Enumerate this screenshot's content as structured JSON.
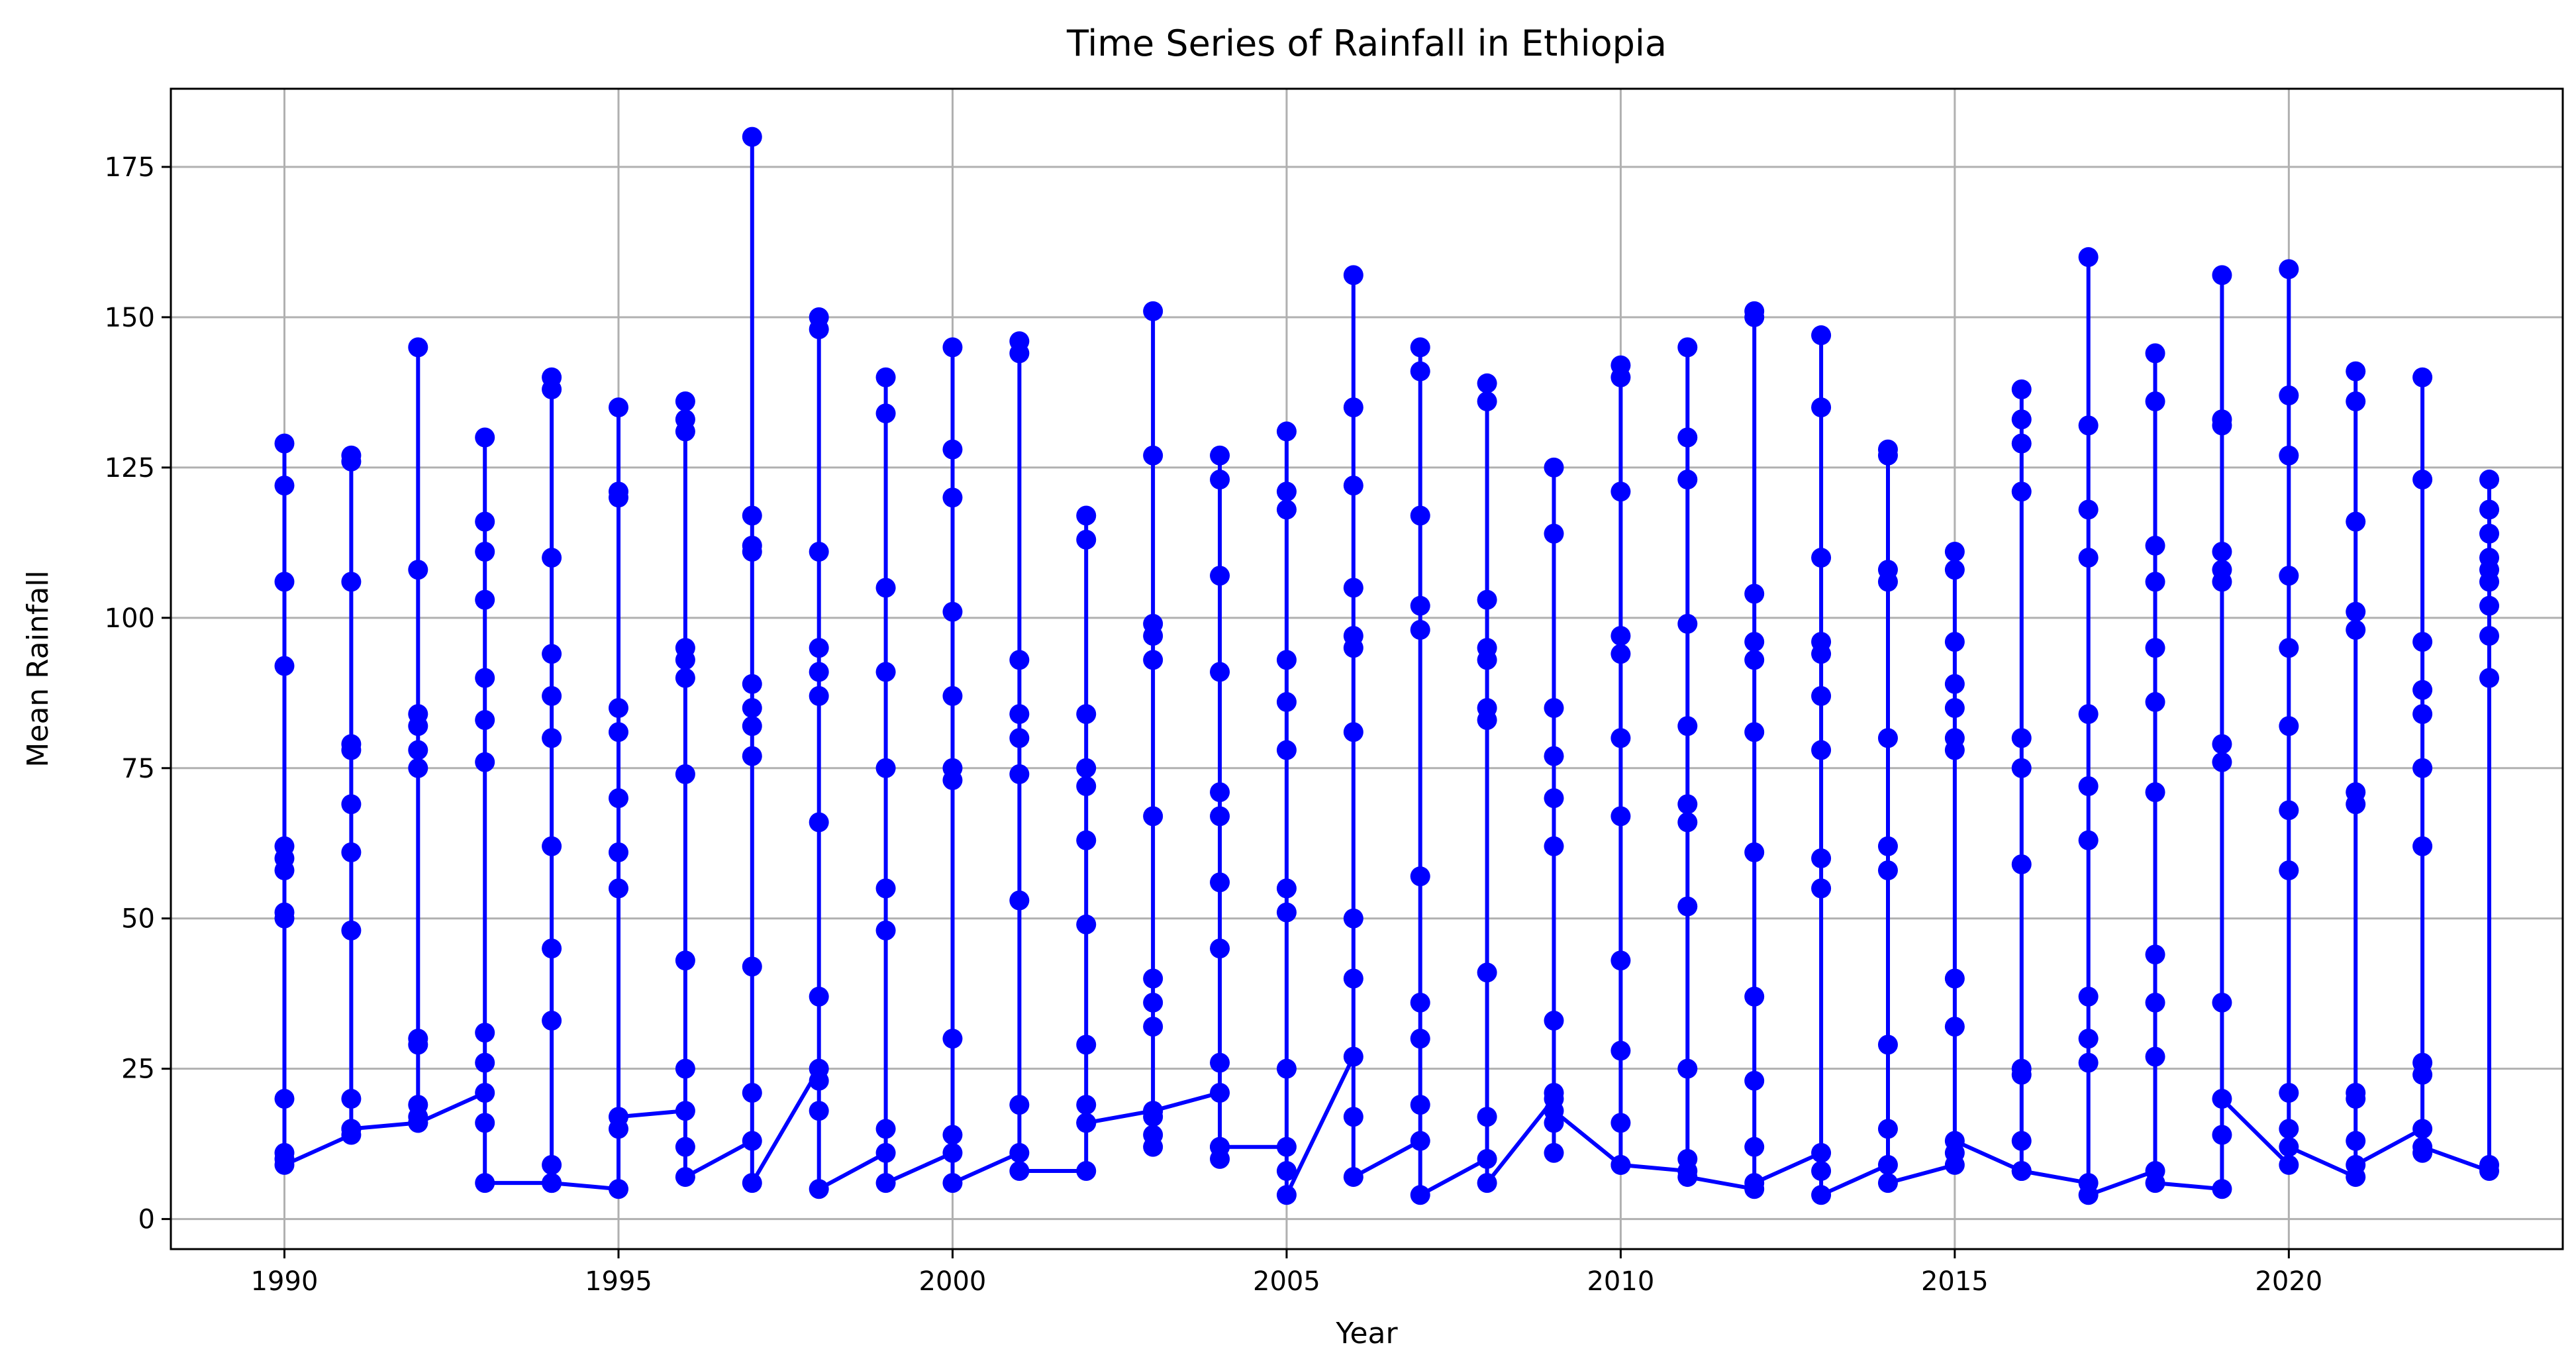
{
  "chart_data": {
    "type": "line",
    "title": "Time Series of Rainfall in Ethiopia",
    "xlabel": "Year",
    "ylabel": "Mean Rainfall",
    "xlim": [
      1988.3,
      2024.1
    ],
    "ylim": [
      -5,
      188
    ],
    "x_ticks": [
      1990,
      1995,
      2000,
      2005,
      2010,
      2015,
      2020
    ],
    "y_ticks": [
      0,
      25,
      50,
      75,
      100,
      125,
      150,
      175
    ],
    "grid": true,
    "legend": "none",
    "colors": {
      "series": "#0000ff",
      "grid": "#b0b0b0",
      "axis": "#000000"
    },
    "series": [
      {
        "marker": "circle",
        "points": [
          {
            "year": 1990,
            "values": [
              10,
              11,
              20,
              50,
              51,
              58,
              60,
              62,
              92,
              106,
              122,
              129,
              9
            ]
          },
          {
            "year": 1991,
            "values": [
              14,
              15,
              20,
              48,
              61,
              69,
              78,
              79,
              106,
              126,
              127,
              15
            ]
          },
          {
            "year": 1992,
            "values": [
              16,
              17,
              19,
              30,
              29,
              75,
              78,
              82,
              84,
              108,
              145,
              16
            ]
          },
          {
            "year": 1993,
            "values": [
              21,
              16,
              26,
              31,
              76,
              83,
              90,
              103,
              111,
              116,
              130,
              6
            ]
          },
          {
            "year": 1994,
            "values": [
              6,
              9,
              33,
              45,
              62,
              80,
              87,
              94,
              110,
              138,
              140,
              6
            ]
          },
          {
            "year": 1995,
            "values": [
              5,
              15,
              55,
              61,
              70,
              81,
              85,
              120,
              121,
              135,
              17
            ]
          },
          {
            "year": 1996,
            "values": [
              18,
              12,
              25,
              43,
              74,
              90,
              93,
              95,
              131,
              133,
              136,
              7
            ]
          },
          {
            "year": 1997,
            "values": [
              13,
              21,
              42,
              77,
              82,
              85,
              89,
              111,
              112,
              117,
              180,
              6
            ]
          },
          {
            "year": 1998,
            "values": [
              25,
              18,
              23,
              37,
              66,
              87,
              91,
              95,
              111,
              148,
              150,
              5
            ]
          },
          {
            "year": 1999,
            "values": [
              11,
              15,
              48,
              55,
              75,
              91,
              105,
              134,
              140,
              6
            ]
          },
          {
            "year": 2000,
            "values": [
              11,
              14,
              30,
              73,
              75,
              87,
              101,
              120,
              128,
              145,
              6
            ]
          },
          {
            "year": 2001,
            "values": [
              11,
              19,
              53,
              74,
              80,
              84,
              93,
              144,
              146,
              8
            ]
          },
          {
            "year": 2002,
            "values": [
              8,
              16,
              19,
              29,
              49,
              63,
              72,
              75,
              84,
              113,
              117,
              16
            ]
          },
          {
            "year": 2003,
            "values": [
              18,
              12,
              14,
              17,
              32,
              36,
              40,
              67,
              93,
              97,
              99,
              127,
              151,
              18
            ]
          },
          {
            "year": 2004,
            "values": [
              21,
              10,
              12,
              26,
              45,
              56,
              67,
              71,
              91,
              107,
              123,
              127,
              12
            ]
          },
          {
            "year": 2005,
            "values": [
              12,
              8,
              25,
              51,
              55,
              78,
              86,
              93,
              118,
              121,
              131,
              4
            ]
          },
          {
            "year": 2006,
            "values": [
              27,
              17,
              40,
              50,
              81,
              95,
              97,
              105,
              122,
              135,
              157,
              7
            ]
          },
          {
            "year": 2007,
            "values": [
              13,
              19,
              30,
              36,
              57,
              98,
              102,
              117,
              141,
              145,
              4
            ]
          },
          {
            "year": 2008,
            "values": [
              10,
              17,
              41,
              83,
              85,
              93,
              95,
              103,
              136,
              139,
              6
            ]
          },
          {
            "year": 2009,
            "values": [
              20,
              11,
              16,
              21,
              33,
              62,
              70,
              77,
              85,
              114,
              125,
              18
            ]
          },
          {
            "year": 2010,
            "values": [
              9,
              16,
              28,
              43,
              67,
              80,
              94,
              97,
              121,
              140,
              142,
              9
            ]
          },
          {
            "year": 2011,
            "values": [
              8,
              10,
              25,
              52,
              66,
              69,
              82,
              99,
              123,
              130,
              145,
              7
            ]
          },
          {
            "year": 2012,
            "values": [
              5,
              12,
              23,
              37,
              61,
              81,
              93,
              96,
              104,
              150,
              151,
              6
            ]
          },
          {
            "year": 2013,
            "values": [
              11,
              8,
              55,
              60,
              78,
              87,
              94,
              96,
              110,
              135,
              147,
              4
            ]
          },
          {
            "year": 2014,
            "values": [
              9,
              15,
              29,
              58,
              62,
              80,
              106,
              108,
              127,
              128,
              6
            ]
          },
          {
            "year": 2015,
            "values": [
              9,
              11,
              32,
              40,
              78,
              80,
              85,
              89,
              96,
              108,
              111,
              13
            ]
          },
          {
            "year": 2016,
            "values": [
              8,
              13,
              24,
              25,
              59,
              75,
              80,
              121,
              129,
              133,
              138,
              8
            ]
          },
          {
            "year": 2017,
            "values": [
              6,
              26,
              30,
              37,
              63,
              72,
              84,
              110,
              118,
              132,
              160,
              4
            ]
          },
          {
            "year": 2018,
            "values": [
              8,
              27,
              36,
              44,
              71,
              86,
              95,
              106,
              112,
              136,
              144,
              6
            ]
          },
          {
            "year": 2019,
            "values": [
              5,
              14,
              36,
              76,
              79,
              106,
              108,
              111,
              132,
              133,
              157,
              20
            ]
          },
          {
            "year": 2020,
            "values": [
              9,
              15,
              21,
              58,
              68,
              82,
              95,
              107,
              127,
              137,
              158,
              12
            ]
          },
          {
            "year": 2021,
            "values": [
              7,
              13,
              20,
              21,
              69,
              71,
              98,
              101,
              116,
              136,
              141,
              9
            ]
          },
          {
            "year": 2022,
            "values": [
              15,
              11,
              24,
              26,
              62,
              75,
              84,
              88,
              96,
              123,
              140,
              12
            ]
          },
          {
            "year": 2023,
            "values": [
              8,
              90,
              97,
              102,
              106,
              108,
              110,
              114,
              118,
              123,
              9
            ]
          }
        ]
      }
    ]
  }
}
